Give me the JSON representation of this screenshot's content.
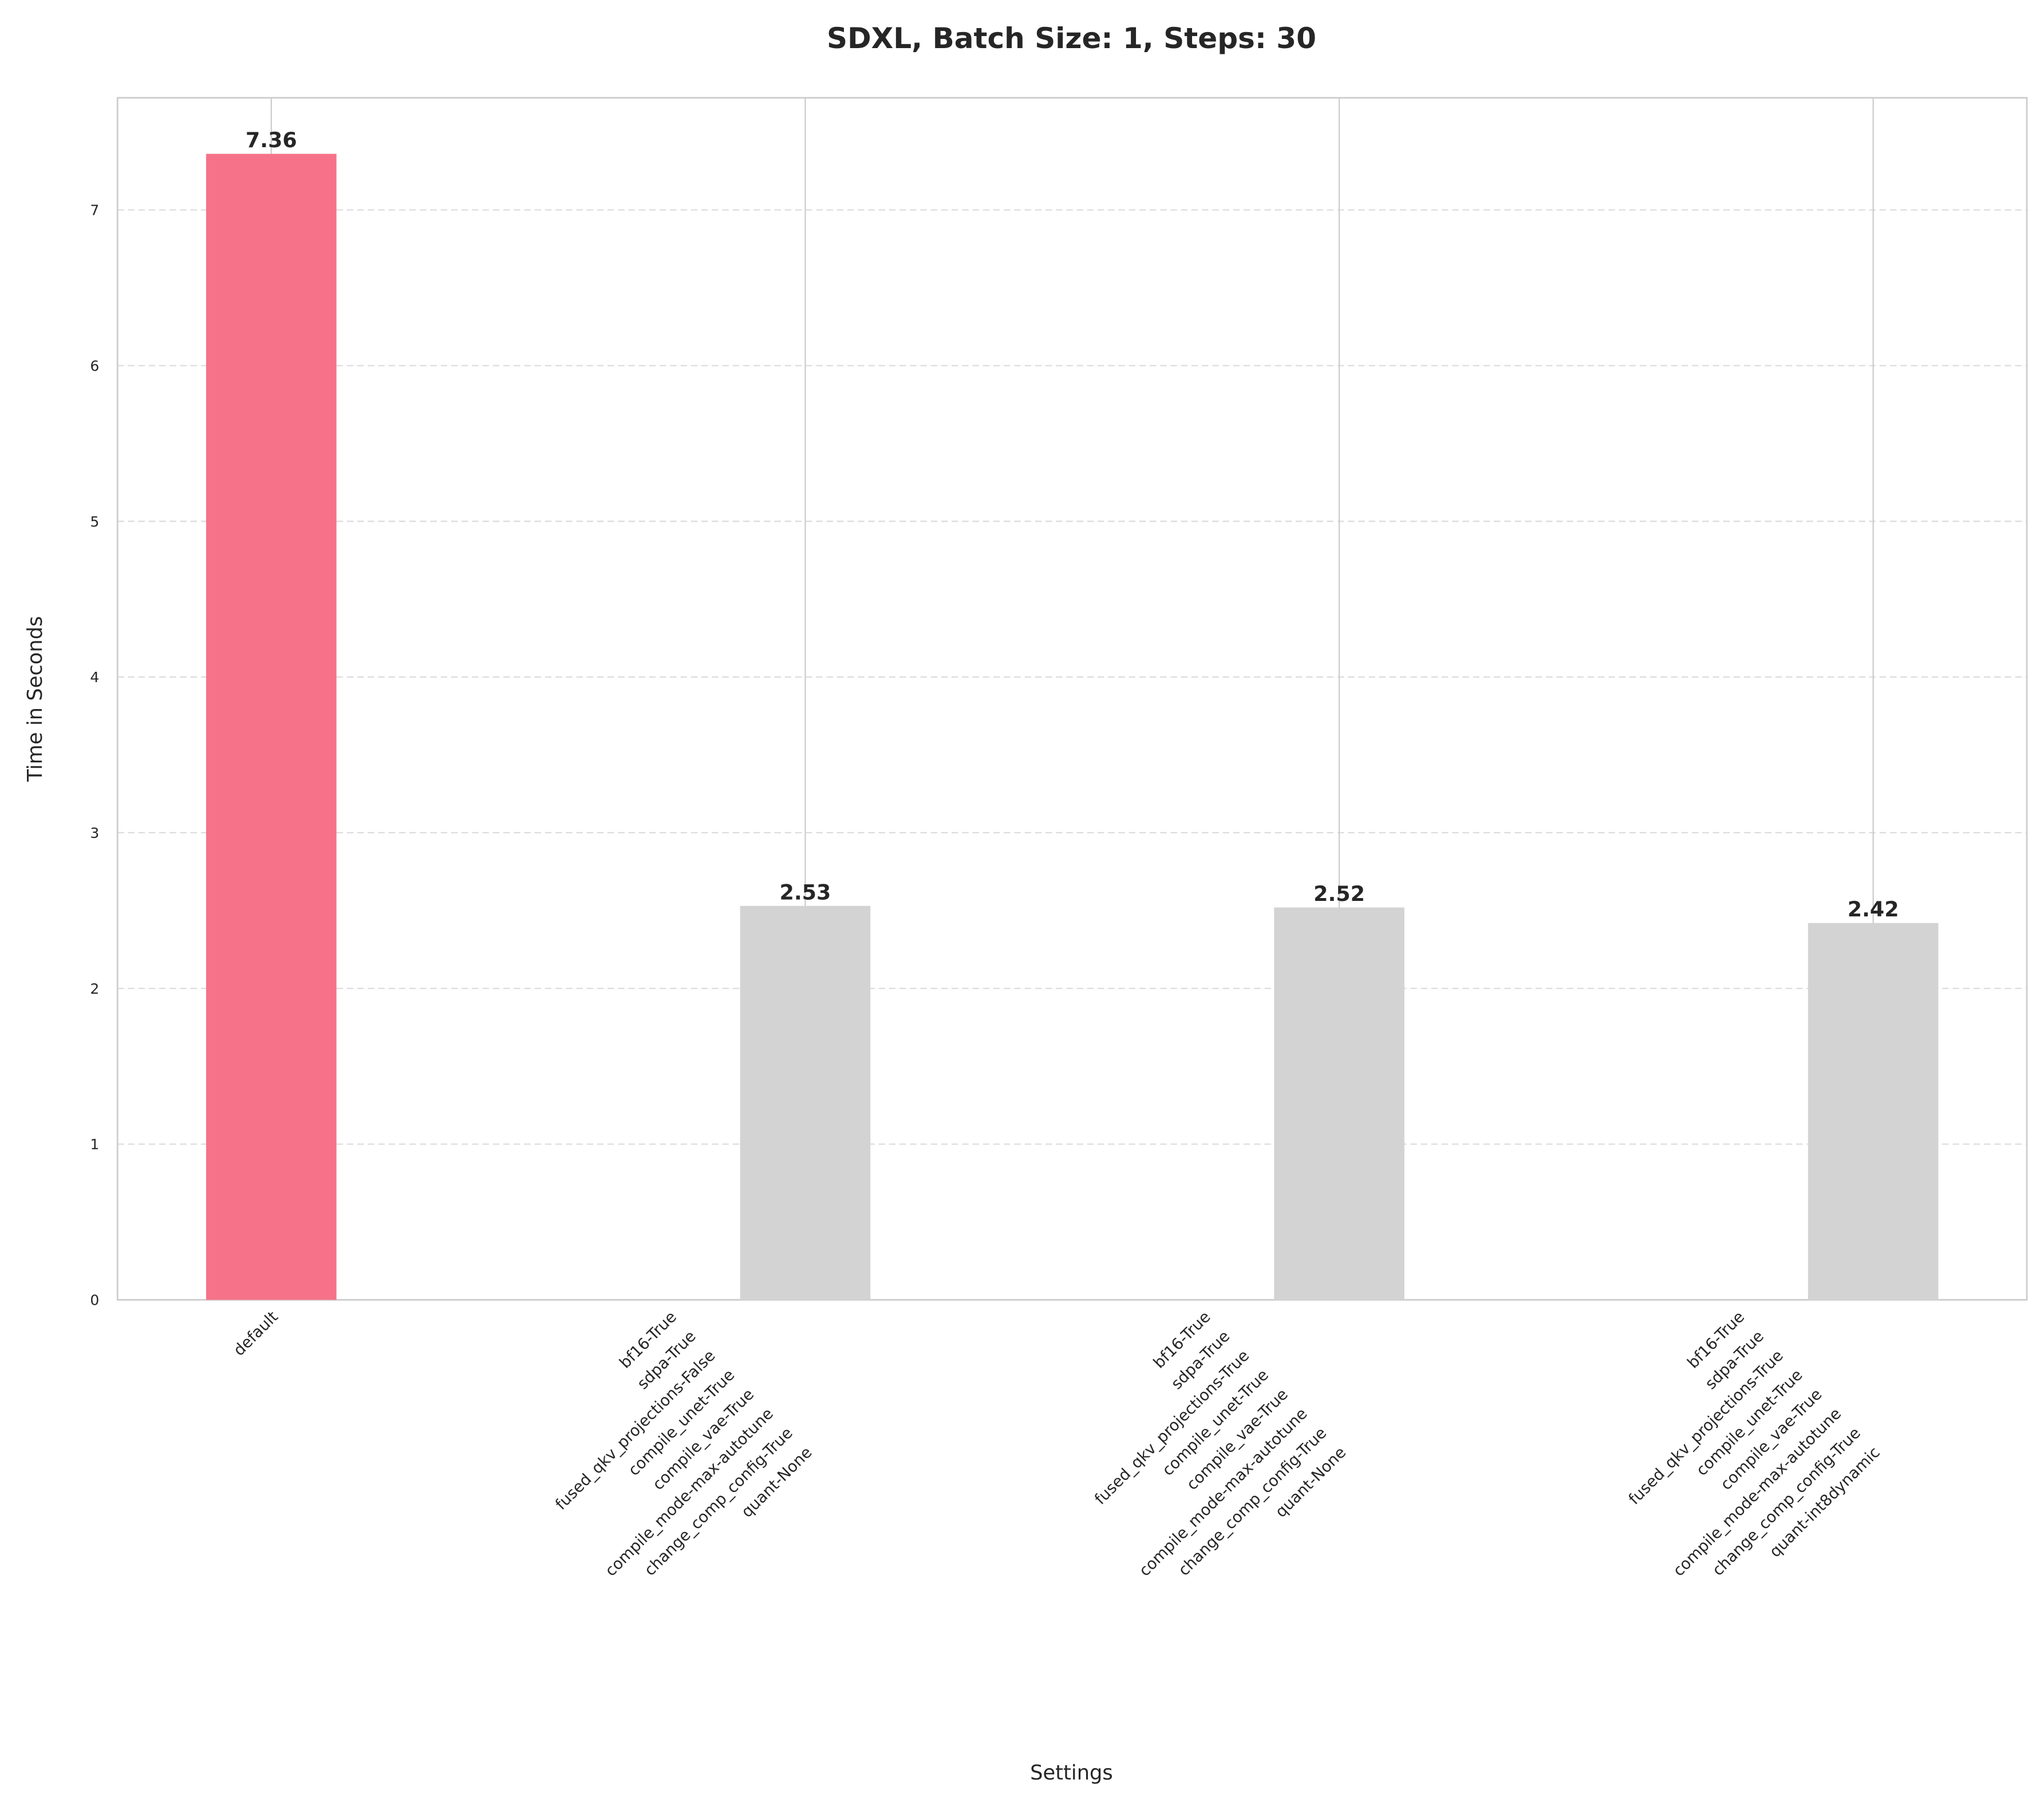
{
  "chart_data": {
    "type": "bar",
    "title": "SDXL, Batch Size: 1, Steps: 30",
    "xlabel": "Settings",
    "ylabel": "Time in Seconds",
    "ylim": [
      0,
      7.72
    ],
    "yticks": [
      0,
      1,
      2,
      3,
      4,
      5,
      6,
      7
    ],
    "grid": {
      "y": "dashed",
      "x": "solid"
    },
    "categories": [
      [
        "default"
      ],
      [
        "bf16-True",
        "sdpa-True",
        "fused_qkv_projections-False",
        "compile_unet-True",
        "compile_vae-True",
        "compile_mode-max-autotune",
        "change_comp_config-True",
        "quant-None"
      ],
      [
        "bf16-True",
        "sdpa-True",
        "fused_qkv_projections-True",
        "compile_unet-True",
        "compile_vae-True",
        "compile_mode-max-autotune",
        "change_comp_config-True",
        "quant-None"
      ],
      [
        "bf16-True",
        "sdpa-True",
        "fused_qkv_projections-True",
        "compile_unet-True",
        "compile_vae-True",
        "compile_mode-max-autotune",
        "change_comp_config-True",
        "quant-int8dynamic"
      ]
    ],
    "values": [
      7.36,
      2.53,
      2.52,
      2.42
    ],
    "data_labels": [
      "7.36",
      "2.53",
      "2.52",
      "2.42"
    ],
    "colors": [
      "#f67289",
      "#d3d3d3",
      "#d3d3d3",
      "#d3d3d3"
    ]
  }
}
